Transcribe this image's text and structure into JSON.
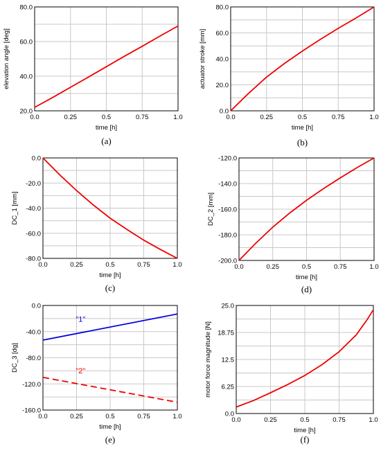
{
  "colors": {
    "red": "#ee0000",
    "blue": "#0000dd",
    "grid": "#c8c8c8",
    "axis": "#000000"
  },
  "chart_data": [
    {
      "type": "line",
      "panel": "(a)",
      "xlabel": "time [h]",
      "ylabel": "elevation angle [deg]",
      "xlim": [
        0,
        1
      ],
      "ylim": [
        20,
        80
      ],
      "xticks": [
        "0.0",
        "0.25",
        "0.5",
        "0.75",
        "1.0"
      ],
      "yticks": [
        "20.0",
        "40.0",
        "60.0",
        "80.0"
      ],
      "series": [
        {
          "color": "#ee0000",
          "dash": false,
          "x": [
            0,
            0.125,
            0.25,
            0.375,
            0.5,
            0.625,
            0.75,
            0.875,
            1.0
          ],
          "y": [
            22,
            27.7,
            33.6,
            39.5,
            45.5,
            51.5,
            57.3,
            63.2,
            69
          ]
        }
      ]
    },
    {
      "type": "line",
      "panel": "(b)",
      "xlabel": "time [h]",
      "ylabel": "actuator stroke [mm]",
      "xlim": [
        0,
        1
      ],
      "ylim": [
        0,
        80
      ],
      "xticks": [
        "0.0",
        "0.25",
        "0.5",
        "0.75",
        "1.0"
      ],
      "yticks": [
        "0.0",
        "20.0",
        "40.0",
        "60.0",
        "80.0"
      ],
      "series": [
        {
          "color": "#ee0000",
          "dash": false,
          "x": [
            0,
            0.125,
            0.25,
            0.375,
            0.5,
            0.625,
            0.75,
            0.875,
            1.0
          ],
          "y": [
            0,
            13.5,
            26,
            36.5,
            46,
            55,
            63.5,
            71.5,
            80
          ]
        }
      ]
    },
    {
      "type": "line",
      "panel": "(c)",
      "xlabel": "time [h]",
      "ylabel": "DC_1 [mm]",
      "xlim": [
        0,
        1
      ],
      "ylim": [
        -80,
        0
      ],
      "xticks": [
        "0.0",
        "0.25",
        "0.5",
        "0.75",
        "1.0"
      ],
      "yticks": [
        "-80.0",
        "-60.0",
        "-40.0",
        "-20.0",
        "0.0"
      ],
      "series": [
        {
          "color": "#ee0000",
          "dash": false,
          "x": [
            0,
            0.125,
            0.25,
            0.375,
            0.5,
            0.625,
            0.75,
            0.875,
            1.0
          ],
          "y": [
            0,
            -13.5,
            -26,
            -37.5,
            -48,
            -57,
            -65.5,
            -73,
            -80
          ]
        }
      ]
    },
    {
      "type": "line",
      "panel": "(d)",
      "xlabel": "time [h]",
      "ylabel": "DC_2 [mm]",
      "xlim": [
        0,
        1
      ],
      "ylim": [
        -200,
        -120
      ],
      "xticks": [
        "0.0",
        "0.25",
        "0.5",
        "0.75",
        "1.0"
      ],
      "yticks": [
        "-200.0",
        "-180.0",
        "-160.0",
        "-140.0",
        "-120.0"
      ],
      "series": [
        {
          "color": "#ee0000",
          "dash": false,
          "x": [
            0,
            0.125,
            0.25,
            0.375,
            0.5,
            0.625,
            0.75,
            0.875,
            1.0
          ],
          "y": [
            -200,
            -186.5,
            -174,
            -163,
            -153,
            -144,
            -135.5,
            -127.5,
            -120
          ]
        }
      ]
    },
    {
      "type": "line",
      "panel": "(e)",
      "xlabel": "time [h]",
      "ylabel": "DC_3 [dg]",
      "xlim": [
        0,
        1
      ],
      "ylim": [
        -160,
        0
      ],
      "xticks": [
        "0.0",
        "0.25",
        "0.5",
        "0.75",
        "1.0"
      ],
      "yticks": [
        "-160.0",
        "-120.0",
        "-80.0",
        "-40.0",
        "0.0"
      ],
      "series": [
        {
          "name": "\"1\"",
          "color": "#0000dd",
          "dash": false,
          "x": [
            0,
            1.0
          ],
          "y": [
            -53,
            -13
          ]
        },
        {
          "name": "\"2\"",
          "color": "#ee0000",
          "dash": true,
          "x": [
            0,
            1.0
          ],
          "y": [
            -110,
            -148
          ]
        }
      ],
      "annotations": [
        {
          "text": "\"1\"",
          "x": 0.28,
          "y": -25,
          "color": "#0000dd"
        },
        {
          "text": "\"2\"",
          "x": 0.28,
          "y": -104,
          "color": "#ee0000"
        }
      ]
    },
    {
      "type": "line",
      "panel": "(f)",
      "xlabel": "time [h]",
      "ylabel": "motor force magnitude [N]",
      "xlim": [
        0,
        1
      ],
      "ylim": [
        0,
        25
      ],
      "xticks": [
        "0.0",
        "0.25",
        "0.5",
        "0.75",
        "1.0"
      ],
      "yticks": [
        "0.0",
        "6.25",
        "12.5",
        "18.75",
        "25.0"
      ],
      "series": [
        {
          "color": "#ee0000",
          "dash": false,
          "x": [
            0,
            0.125,
            0.25,
            0.375,
            0.5,
            0.625,
            0.75,
            0.875,
            0.95,
            1.0
          ],
          "y": [
            1.5,
            3,
            4.8,
            6.7,
            8.8,
            11.3,
            14.3,
            18.2,
            21.5,
            24
          ]
        }
      ]
    }
  ]
}
